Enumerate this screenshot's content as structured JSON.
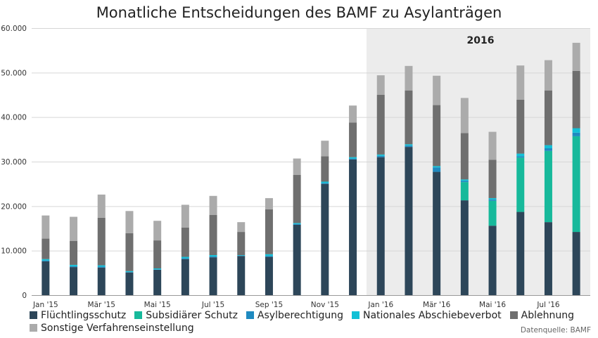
{
  "chart_data": {
    "type": "bar",
    "stacked": true,
    "title": "Monatliche Entscheidungen des BAMF zu Asylanträgen",
    "xlabel": "",
    "ylabel": "",
    "ylim": [
      0,
      60000
    ],
    "yticks": [
      "0",
      "10.000",
      "20.000",
      "30.000",
      "40.000",
      "50.000",
      "60.000"
    ],
    "grid": true,
    "legend_position": "bottom",
    "highlight": {
      "label": "2016",
      "from": "Jan '16",
      "to": "Aug '16"
    },
    "categories": [
      "Jan '15",
      "Feb '15",
      "Mär '15",
      "Apr '15",
      "Mai '15",
      "Jun '15",
      "Jul '15",
      "Aug '15",
      "Sep '15",
      "Okt '15",
      "Nov '15",
      "Dez '15",
      "Jan '16",
      "Feb '16",
      "Mär '16",
      "Apr '16",
      "Mai '16",
      "Jun '16",
      "Jul '16",
      "Aug '16"
    ],
    "x_tick_labels": [
      "Jan '15",
      "",
      "Mär '15",
      "",
      "Mai '15",
      "",
      "Jul '15",
      "",
      "Sep '15",
      "",
      "Nov '15",
      "",
      "Jan '16",
      "",
      "Mär '16",
      "",
      "Mai '16",
      "",
      "Jul '16",
      ""
    ],
    "series": [
      {
        "name": "Flüchtlingsschutz",
        "color": "#2d4659",
        "values": [
          7600,
          6300,
          6200,
          5100,
          5700,
          8100,
          8500,
          8800,
          8600,
          15800,
          25000,
          30500,
          31000,
          33300,
          27700,
          21300,
          15600,
          18700,
          16400,
          14200
        ]
      },
      {
        "name": "Subsidiärer Schutz",
        "color": "#17b99b",
        "values": [
          0,
          0,
          0,
          0,
          0,
          0,
          0,
          0,
          0,
          0,
          0,
          0,
          0,
          0,
          0,
          4100,
          5600,
          12200,
          16000,
          21500
        ]
      },
      {
        "name": "Asylberechtigung",
        "color": "#1f8ac0",
        "values": [
          200,
          200,
          200,
          100,
          100,
          200,
          200,
          100,
          200,
          200,
          200,
          200,
          300,
          300,
          1000,
          300,
          300,
          300,
          600,
          800
        ]
      },
      {
        "name": "Nationales Abschiebeverbot",
        "color": "#12c0d6",
        "values": [
          300,
          300,
          300,
          200,
          200,
          300,
          300,
          100,
          400,
          200,
          300,
          300,
          300,
          300,
          300,
          300,
          300,
          600,
          700,
          1000
        ]
      },
      {
        "name": "Ablehnung",
        "color": "#6f6f6f",
        "values": [
          4600,
          5400,
          10700,
          8500,
          6300,
          6600,
          9000,
          5200,
          10100,
          10800,
          5700,
          7800,
          13400,
          12100,
          13700,
          10400,
          8600,
          12100,
          12300,
          12900
        ]
      },
      {
        "name": "Sonstige Verfahrenseinstellung",
        "color": "#ababab",
        "values": [
          5200,
          5400,
          5200,
          5000,
          4400,
          5100,
          4300,
          2200,
          2500,
          3700,
          3500,
          3800,
          4400,
          5500,
          6600,
          7900,
          6300,
          7700,
          6800,
          6300
        ]
      }
    ]
  },
  "source_note": "Datenquelle: BAMF"
}
